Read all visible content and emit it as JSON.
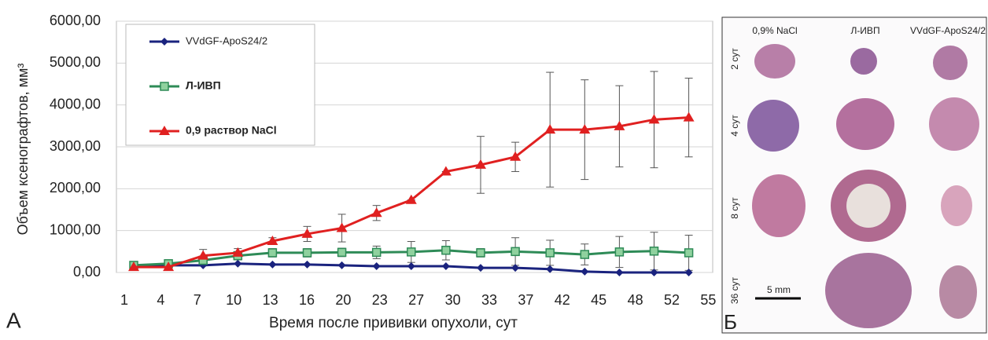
{
  "chart_data": {
    "type": "line",
    "x_label": "Время после прививки опухоли, сут",
    "y_label": "Объем ксенографтов, мм³",
    "panel_label": "А",
    "categories": [
      "1",
      "4",
      "7",
      "10",
      "13",
      "16",
      "20",
      "23",
      "27",
      "30",
      "33",
      "37",
      "42",
      "45",
      "48",
      "52",
      "55"
    ],
    "ylim": [
      0,
      6000
    ],
    "yticks": [
      {
        "value": 0,
        "label": "0,00"
      },
      {
        "value": 1000,
        "label": "1000,00"
      },
      {
        "value": 2000,
        "label": "2000,00"
      },
      {
        "value": 3000,
        "label": "3000,00"
      },
      {
        "value": 4000,
        "label": "4000,00"
      },
      {
        "value": 5000,
        "label": "5000,00"
      },
      {
        "value": 6000,
        "label": "6000,00"
      }
    ],
    "grid": true,
    "legend": "upper left",
    "series": [
      {
        "name": "VVdGF-ApoS24/2",
        "color": "#1a237e",
        "marker": "diamond",
        "values": [
          170,
          170,
          170,
          210,
          190,
          190,
          170,
          150,
          150,
          150,
          110,
          110,
          80,
          20,
          0,
          0,
          0
        ]
      },
      {
        "name": "Л-ИВП",
        "color": "#2e8b57",
        "marker": "square",
        "values": [
          170,
          210,
          290,
          400,
          470,
          470,
          480,
          480,
          490,
          530,
          470,
          500,
          470,
          430,
          490,
          510,
          470
        ],
        "errors": [
          50,
          50,
          100,
          100,
          100,
          100,
          100,
          150,
          250,
          230,
          100,
          330,
          300,
          250,
          370,
          450,
          420
        ]
      },
      {
        "name": "0,9 раствор NaCl",
        "color": "#e02020",
        "marker": "triangle",
        "values": [
          130,
          130,
          400,
          470,
          750,
          920,
          1060,
          1420,
          1730,
          2410,
          2570,
          2760,
          3410,
          3410,
          3490,
          3650,
          3700
        ],
        "errors": [
          0,
          0,
          150,
          100,
          80,
          180,
          330,
          180,
          0,
          0,
          680,
          350,
          1370,
          1190,
          970,
          1150,
          940
        ]
      }
    ]
  },
  "panel_b": {
    "label": "Б",
    "columns": [
      "0,9% NaCl",
      "Л-ИВП",
      "VVdGF-ApoS24/2"
    ],
    "rows": [
      "2 сут",
      "4 сут",
      "8 сут",
      "36 сут"
    ],
    "scale": "5 mm"
  }
}
